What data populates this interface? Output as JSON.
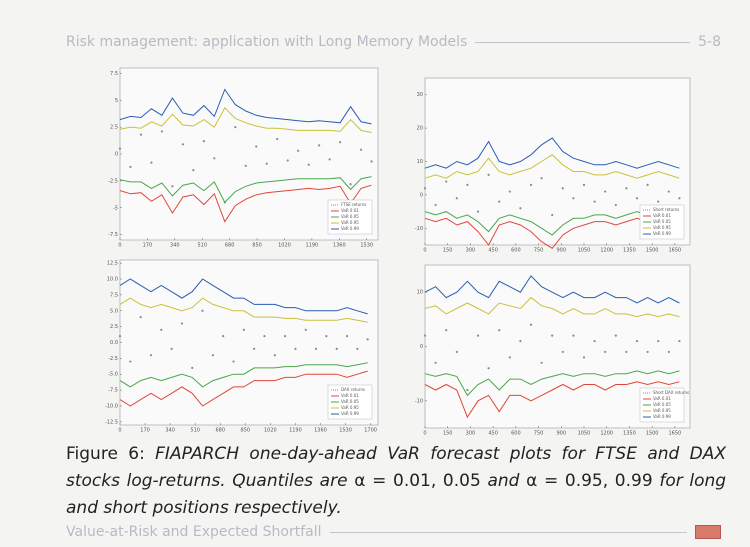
{
  "header": {
    "title": "Risk management: application with Long Memory Models",
    "page": "5-8"
  },
  "charts": [
    {
      "type": "line",
      "legend": "lower right",
      "x": [
        0,
        65,
        130,
        195,
        260,
        325,
        390,
        455,
        520,
        585,
        650,
        715,
        780,
        845,
        910,
        975,
        1040,
        1105,
        1170,
        1235,
        1300,
        1365,
        1430,
        1495,
        1560
      ],
      "xlim": [
        0,
        1600
      ],
      "xticks": [
        0,
        170,
        340,
        510,
        680,
        850,
        1020,
        1190,
        1360,
        1530
      ],
      "ylim": [
        -8,
        8
      ],
      "yticks": [
        -7.5,
        -5,
        -2.5,
        0,
        2.5,
        5,
        7.5
      ],
      "series": [
        {
          "name": "FTSE returns",
          "color": "#8a8a8a",
          "marks": "dots",
          "values": [
            0.5,
            -1.2,
            1.8,
            -0.8,
            2.1,
            -3.0,
            0.9,
            -1.5,
            1.2,
            -0.4,
            -4.5,
            2.5,
            -1.1,
            0.7,
            -0.9,
            1.4,
            -0.6,
            0.3,
            -1.0,
            0.8,
            -0.5,
            1.1,
            -2.8,
            0.4,
            -0.7
          ]
        },
        {
          "name": "VaR 0.01",
          "color": "#e0473a",
          "values": [
            -3.4,
            -3.7,
            -3.6,
            -4.4,
            -3.8,
            -5.5,
            -4.0,
            -3.8,
            -4.7,
            -3.7,
            -6.3,
            -4.8,
            -4.2,
            -3.8,
            -3.6,
            -3.5,
            -3.4,
            -3.3,
            -3.2,
            -3.3,
            -3.2,
            -3.0,
            -4.6,
            -3.2,
            -2.9
          ]
        },
        {
          "name": "VaR 0.05",
          "color": "#4aa64a",
          "values": [
            -2.4,
            -2.6,
            -2.6,
            -3.2,
            -2.7,
            -3.9,
            -2.9,
            -2.7,
            -3.4,
            -2.6,
            -4.5,
            -3.5,
            -3.0,
            -2.7,
            -2.6,
            -2.5,
            -2.4,
            -2.3,
            -2.3,
            -2.3,
            -2.3,
            -2.2,
            -3.3,
            -2.3,
            -2.1
          ]
        },
        {
          "name": "VaR 0.95",
          "color": "#c9c23a",
          "values": [
            2.3,
            2.5,
            2.4,
            3.0,
            2.6,
            3.7,
            2.7,
            2.6,
            3.2,
            2.5,
            4.3,
            3.3,
            2.9,
            2.6,
            2.4,
            2.4,
            2.3,
            2.2,
            2.2,
            2.2,
            2.2,
            2.1,
            3.2,
            2.2,
            2.0
          ]
        },
        {
          "name": "VaR 0.99",
          "color": "#2a5db0",
          "values": [
            3.2,
            3.5,
            3.4,
            4.2,
            3.6,
            5.2,
            3.8,
            3.6,
            4.5,
            3.5,
            6.0,
            4.6,
            4.0,
            3.6,
            3.4,
            3.3,
            3.2,
            3.1,
            3.0,
            3.1,
            3.0,
            2.9,
            4.4,
            3.0,
            2.8
          ]
        }
      ]
    },
    {
      "type": "line",
      "legend": "lower right",
      "x": [
        0,
        70,
        140,
        210,
        280,
        350,
        420,
        490,
        560,
        630,
        700,
        770,
        840,
        910,
        980,
        1050,
        1120,
        1190,
        1260,
        1330,
        1400,
        1470,
        1540,
        1610,
        1680
      ],
      "xlim": [
        0,
        1750
      ],
      "xticks": [
        0,
        150,
        300,
        450,
        600,
        750,
        900,
        1050,
        1200,
        1350,
        1500,
        1650
      ],
      "ylim": [
        -15,
        35
      ],
      "yticks": [
        -10,
        0,
        10,
        20,
        30
      ],
      "series": [
        {
          "name": "Short returns",
          "color": "#8a8a8a",
          "marks": "dots",
          "values": [
            2,
            -3,
            4,
            -1,
            3,
            -5,
            6,
            -2,
            1,
            -4,
            3,
            5,
            -6,
            2,
            -1,
            3,
            -2,
            1,
            -3,
            2,
            -1,
            3,
            -2,
            1,
            -1
          ]
        },
        {
          "name": "VaR 0.01",
          "color": "#e0473a",
          "values": [
            -7,
            -8,
            -7,
            -9,
            -8,
            -11,
            -15,
            -9,
            -8,
            -9,
            -11,
            -14,
            -16,
            -12,
            -10,
            -9,
            -8,
            -8,
            -9,
            -8,
            -7,
            -8,
            -9,
            -8,
            -7
          ]
        },
        {
          "name": "VaR 0.05",
          "color": "#4aa64a",
          "values": [
            -5,
            -6,
            -5,
            -7,
            -6,
            -8,
            -11,
            -7,
            -6,
            -7,
            -8,
            -10,
            -12,
            -9,
            -7,
            -7,
            -6,
            -6,
            -7,
            -6,
            -5,
            -6,
            -7,
            -6,
            -5
          ]
        },
        {
          "name": "VaR 0.95",
          "color": "#c9c23a",
          "values": [
            5,
            6,
            5,
            7,
            6,
            7,
            11,
            7,
            6,
            7,
            8,
            10,
            12,
            9,
            7,
            7,
            6,
            6,
            7,
            6,
            5,
            6,
            7,
            6,
            5
          ]
        },
        {
          "name": "VaR 0.99",
          "color": "#2a5db0",
          "values": [
            8,
            9,
            8,
            10,
            9,
            11,
            16,
            10,
            9,
            10,
            12,
            15,
            17,
            13,
            11,
            10,
            9,
            9,
            10,
            9,
            8,
            9,
            10,
            9,
            8
          ]
        }
      ]
    },
    {
      "type": "line",
      "legend": "lower right",
      "x": [
        0,
        70,
        140,
        210,
        280,
        350,
        420,
        490,
        560,
        630,
        700,
        770,
        840,
        910,
        980,
        1050,
        1120,
        1190,
        1260,
        1330,
        1400,
        1470,
        1540,
        1610,
        1680
      ],
      "xlim": [
        0,
        1750
      ],
      "xticks": [
        0,
        170,
        340,
        510,
        680,
        850,
        1020,
        1190,
        1360,
        1530,
        1700
      ],
      "ylim": [
        -13,
        13
      ],
      "yticks": [
        -12.5,
        {
          "value": -10,
          "label": "-10.0"
        },
        -7.5,
        {
          "value": -5,
          "label": "-5.0"
        },
        -2.5,
        {
          "value": 0,
          "label": "0.0"
        },
        2.5,
        {
          "value": 5,
          "label": "5.0"
        },
        7.5,
        {
          "value": 10,
          "label": "10.0"
        },
        12.5
      ],
      "series": [
        {
          "name": "DAX returns",
          "color": "#8a8a8a",
          "marks": "dots",
          "values": [
            1,
            -3,
            4,
            -2,
            2,
            -1,
            3,
            -4,
            5,
            -2,
            1,
            -3,
            2,
            -1,
            1,
            -2,
            1,
            -1,
            2,
            -1,
            1,
            -1,
            1,
            -1,
            0.5
          ]
        },
        {
          "name": "VaR 0.01",
          "color": "#e0473a",
          "values": [
            -9,
            -10,
            -9,
            -8,
            -9,
            -8,
            -7,
            -8,
            -10,
            -9,
            -8,
            -7,
            -7,
            -6,
            -6,
            -6,
            -5.5,
            -5.5,
            -5,
            -5,
            -5,
            -5,
            -5.5,
            -5,
            -4.5
          ]
        },
        {
          "name": "VaR 0.05",
          "color": "#4aa64a",
          "values": [
            -6,
            -7,
            -6,
            -5.5,
            -6,
            -5.5,
            -5,
            -5.5,
            -7,
            -6,
            -5.5,
            -5,
            -5,
            -4,
            -4,
            -4,
            -3.8,
            -3.8,
            -3.5,
            -3.5,
            -3.5,
            -3.5,
            -3.8,
            -3.5,
            -3.2
          ]
        },
        {
          "name": "VaR 0.95",
          "color": "#c9c23a",
          "values": [
            6,
            7,
            6,
            5.5,
            6,
            5.5,
            5,
            5.5,
            7,
            6,
            5.5,
            5,
            5,
            4,
            4,
            4,
            3.8,
            3.8,
            3.5,
            3.5,
            3.5,
            3.5,
            3.8,
            3.5,
            3.2
          ]
        },
        {
          "name": "VaR 0.99",
          "color": "#2a5db0",
          "values": [
            9,
            10,
            9,
            8,
            9,
            8,
            7,
            8,
            10,
            9,
            8,
            7,
            7,
            6,
            6,
            6,
            5.5,
            5.5,
            5,
            5,
            5,
            5,
            5.5,
            5,
            4.5
          ]
        }
      ]
    },
    {
      "type": "line",
      "legend": "lower right",
      "x": [
        0,
        70,
        140,
        210,
        280,
        350,
        420,
        490,
        560,
        630,
        700,
        770,
        840,
        910,
        980,
        1050,
        1120,
        1190,
        1260,
        1330,
        1400,
        1470,
        1540,
        1610,
        1680
      ],
      "xlim": [
        0,
        1750
      ],
      "xticks": [
        0,
        150,
        300,
        450,
        600,
        750,
        900,
        1050,
        1200,
        1350,
        1500,
        1650
      ],
      "ylim": [
        -15,
        15
      ],
      "yticks": [
        -10,
        0,
        10
      ],
      "series": [
        {
          "name": "Short DAX returns",
          "color": "#8a8a8a",
          "marks": "dots",
          "values": [
            2,
            -3,
            3,
            -1,
            -8,
            2,
            -4,
            3,
            -2,
            1,
            4,
            -3,
            2,
            -1,
            2,
            -2,
            1,
            -1,
            2,
            -1,
            1,
            -1,
            1,
            -1,
            1
          ]
        },
        {
          "name": "VaR 0.01",
          "color": "#e0473a",
          "values": [
            -7,
            -8,
            -7,
            -8,
            -13,
            -10,
            -9,
            -12,
            -9,
            -9,
            -10,
            -9,
            -8,
            -7,
            -8,
            -7,
            -7,
            -8,
            -7,
            -7,
            -6.5,
            -7,
            -6.5,
            -7,
            -6.5
          ]
        },
        {
          "name": "VaR 0.05",
          "color": "#4aa64a",
          "values": [
            -5,
            -5.5,
            -5,
            -5.5,
            -9,
            -7,
            -6,
            -8,
            -6,
            -6,
            -7,
            -6,
            -5.5,
            -5,
            -5.5,
            -5,
            -5,
            -5.5,
            -5,
            -5,
            -4.5,
            -5,
            -4.5,
            -5,
            -4.5
          ]
        },
        {
          "name": "VaR 0.95",
          "color": "#c9c23a",
          "values": [
            7,
            7.5,
            6,
            7,
            8,
            7,
            6,
            8,
            7.5,
            7,
            9,
            7.5,
            7,
            6,
            7,
            6,
            6,
            7,
            6,
            6,
            5.5,
            6,
            5.5,
            6,
            5.5
          ]
        },
        {
          "name": "VaR 0.99",
          "color": "#2a5db0",
          "values": [
            10,
            11,
            9,
            10,
            12,
            10,
            9,
            12,
            11,
            10,
            13,
            11,
            10,
            9,
            10,
            9,
            9,
            10,
            9,
            9,
            8,
            9,
            8,
            9,
            8
          ]
        }
      ]
    }
  ],
  "caption": {
    "label": "Figure 6:",
    "text1": "FIAPARCH one-day-ahead VaR forecast plots for FTSE and DAX stocks log-returns. Quantiles are",
    "math1": "α = 0.01, 0.05",
    "text2": "and",
    "math2": "α = 0.95, 0.99",
    "text3": "for long and short positions respectively."
  },
  "footer": {
    "title": "Value-at-Risk and Expected Shortfall"
  }
}
